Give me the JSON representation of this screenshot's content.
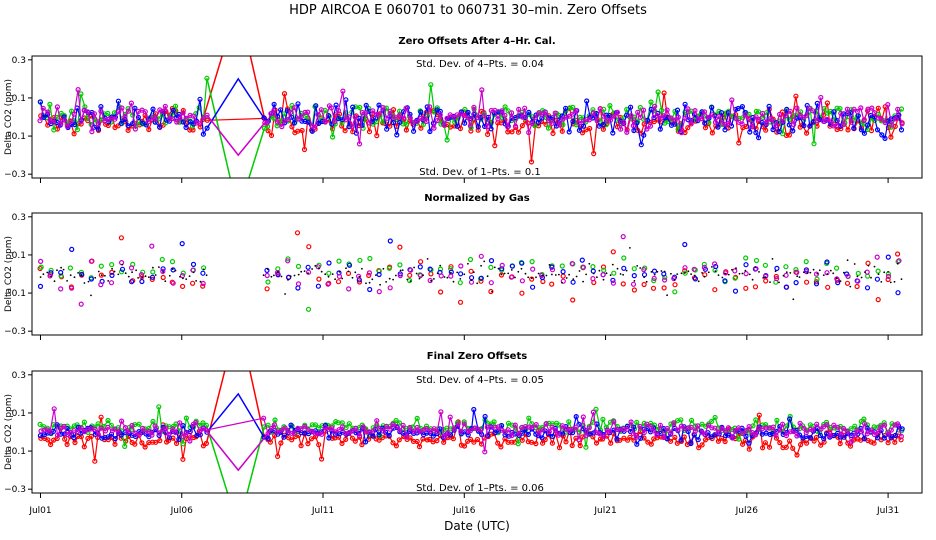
{
  "title": "HDP    AIRCOA E    060701 to 060731    30–min. Zero Offsets",
  "xlabel": "Date (UTC)",
  "x_tick_labels": [
    "Jul01",
    "Jul06",
    "Jul11",
    "Jul16",
    "Jul21",
    "Jul26",
    "Jul31"
  ],
  "colors": {
    "series1": "#ff0000",
    "series2": "#00cc00",
    "series3": "#0000ff",
    "series4": "#cc00cc",
    "gas": "#000000"
  },
  "chart_data": [
    {
      "type": "scatter",
      "title": "Zero Offsets After 4–Hr. Cal.",
      "ylabel": "Delta CO2 (ppm)",
      "y_tick_labels": [
        "0.3",
        "0.1",
        "−0.1",
        "−0.3"
      ],
      "ylim": [
        -0.32,
        0.32
      ],
      "xlim": [
        0.7,
        32.2
      ],
      "x_ticks_days": [
        1,
        6,
        11,
        16,
        21,
        26,
        31
      ],
      "stat_top": "Std. Dev. of 4–Pts. =  0.04",
      "stat_bottom": "Std. Dev. of 1–Pts. =  0.1",
      "series": [
        {
          "name": "series 1",
          "color": "#ff0000",
          "spread": 0.09,
          "offset": -0.03
        },
        {
          "name": "series 2",
          "color": "#00cc00",
          "spread": 0.08,
          "offset": 0.0
        },
        {
          "name": "series 3",
          "color": "#0000ff",
          "spread": 0.09,
          "offset": -0.01
        },
        {
          "name": "series 4",
          "color": "#cc00cc",
          "spread": 0.08,
          "offset": 0.0
        }
      ]
    },
    {
      "type": "scatter",
      "title": "Normalized by Gas",
      "ylabel": "Delta CO2 (ppm)",
      "y_tick_labels": [
        "0.3",
        "0.1",
        "−0.1",
        "−0.3"
      ],
      "ylim": [
        -0.32,
        0.32
      ],
      "xlim": [
        0.7,
        32.2
      ],
      "x_ticks_days": [
        1,
        6,
        11,
        16,
        21,
        26,
        31
      ],
      "series": [
        {
          "name": "series 1",
          "color": "#ff0000",
          "spread": 0.1,
          "offset": -0.02
        },
        {
          "name": "series 2",
          "color": "#00cc00",
          "spread": 0.09,
          "offset": 0.02
        },
        {
          "name": "series 3",
          "color": "#0000ff",
          "spread": 0.11,
          "offset": 0.0
        },
        {
          "name": "series 4",
          "color": "#cc00cc",
          "spread": 0.1,
          "offset": 0.0
        },
        {
          "name": "gas",
          "color": "#000000",
          "spread": 0.06,
          "offset": 0.0
        }
      ]
    },
    {
      "type": "scatter",
      "title": "Final Zero Offsets",
      "ylabel": "Delta CO2 (ppm)",
      "y_tick_labels": [
        "0.3",
        "0.1",
        "−0.1",
        "−0.3"
      ],
      "ylim": [
        -0.32,
        0.32
      ],
      "xlim": [
        0.7,
        32.2
      ],
      "x_ticks_days": [
        1,
        6,
        11,
        16,
        21,
        26,
        31
      ],
      "stat_top": "Std. Dev. of 4–Pts. =  0.05",
      "stat_bottom": "Std. Dev. of 1–Pts. =  0.06",
      "series": [
        {
          "name": "series 1",
          "color": "#ff0000",
          "spread": 0.05,
          "offset": -0.04
        },
        {
          "name": "series 2",
          "color": "#00cc00",
          "spread": 0.05,
          "offset": 0.03
        },
        {
          "name": "series 3",
          "color": "#0000ff",
          "spread": 0.05,
          "offset": 0.0
        },
        {
          "name": "series 4",
          "color": "#cc00cc",
          "spread": 0.05,
          "offset": 0.01
        }
      ]
    }
  ]
}
